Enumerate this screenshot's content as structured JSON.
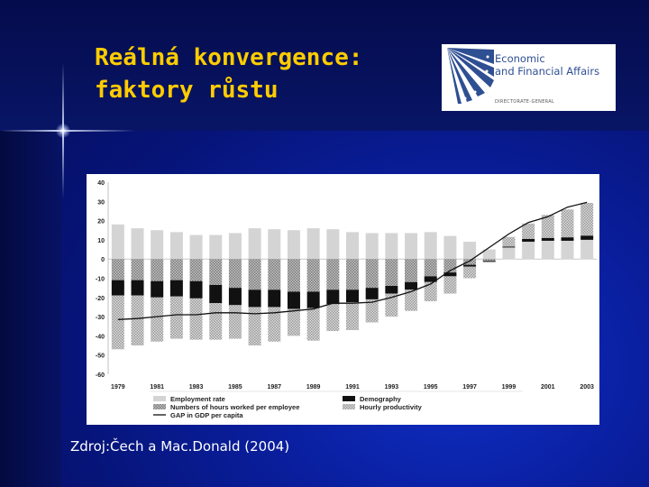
{
  "slide": {
    "title_line1": "Reálná konvergence:",
    "title_line2": "faktory růstu",
    "source": "Zdroj:Čech a Mac.Donald (2004)"
  },
  "logo": {
    "line1": "Economic",
    "line2": "and Financial Affairs",
    "line3": "DIRECTORATE-GENERAL"
  },
  "colors": {
    "employment": "#d4d4d4",
    "hours": "#a8a8a8",
    "demography": "#111111",
    "productivity": "#bdbdbd",
    "gap_line": "#111111"
  },
  "chart_data": {
    "type": "bar",
    "stacked": true,
    "years": [
      1979,
      1980,
      1981,
      1982,
      1983,
      1984,
      1985,
      1986,
      1987,
      1988,
      1989,
      1990,
      1991,
      1992,
      1993,
      1994,
      1995,
      1996,
      1997,
      1998,
      1999,
      2000,
      2001,
      2002,
      2003
    ],
    "tick_labels": [
      "1979",
      "1981",
      "1983",
      "1985",
      "1987",
      "1989",
      "1991",
      "1993",
      "1995",
      "1997",
      "1999",
      "2001",
      "2003"
    ],
    "y_ticks": [
      40,
      30,
      20,
      10,
      0,
      -10,
      -20,
      -30,
      -40,
      -50,
      -60
    ],
    "ylim": [
      -60,
      40
    ],
    "grid": false,
    "legend_position": "bottom",
    "series": [
      {
        "name": "Employment rate",
        "color_key": "employment",
        "values": [
          18,
          16,
          15,
          14,
          12.5,
          12.5,
          13.5,
          16,
          15.5,
          15,
          16,
          15.5,
          14,
          13.5,
          13.5,
          13.5,
          14,
          12,
          9,
          5,
          6,
          9,
          9.5,
          9.5,
          10
        ]
      },
      {
        "name": "Numbers of hours worked per employee",
        "color_key": "hours",
        "values": [
          -11,
          -11,
          -11.5,
          -11,
          -11.5,
          -13.5,
          -15,
          -16,
          -16,
          -17,
          -17,
          -16,
          -16,
          -15,
          -14,
          -12,
          -9,
          -7,
          -3,
          -1,
          0,
          0,
          0,
          0,
          0
        ]
      },
      {
        "name": "Demography",
        "color_key": "demography",
        "values": [
          -8,
          -8,
          -8.5,
          -8.5,
          -9,
          -9.5,
          -9,
          -9,
          -9,
          -9,
          -8.5,
          -7.5,
          -6.5,
          -6,
          -4,
          -4,
          -3,
          -2,
          -1,
          -0.5,
          0.5,
          1.5,
          1.5,
          1.8,
          2.2
        ]
      },
      {
        "name": "Hourly productivity",
        "color_key": "productivity",
        "values": [
          -28,
          -26,
          -23,
          -22,
          -21.5,
          -19,
          -17.5,
          -20,
          -18,
          -14,
          -17,
          -14,
          -14.5,
          -12,
          -12,
          -11,
          -10,
          -9,
          -6,
          0,
          5,
          8,
          12,
          14.5,
          17
        ]
      }
    ],
    "line": {
      "name": "GAP in GDP per capita",
      "color_key": "gap_line",
      "values": [
        -31.5,
        -31,
        -30,
        -29,
        -29,
        -28,
        -28,
        -28.5,
        -28,
        -27,
        -26,
        -23,
        -23,
        -22.5,
        -20,
        -17,
        -13,
        -6,
        -1,
        6,
        13,
        19,
        22,
        27,
        29.5
      ]
    }
  }
}
